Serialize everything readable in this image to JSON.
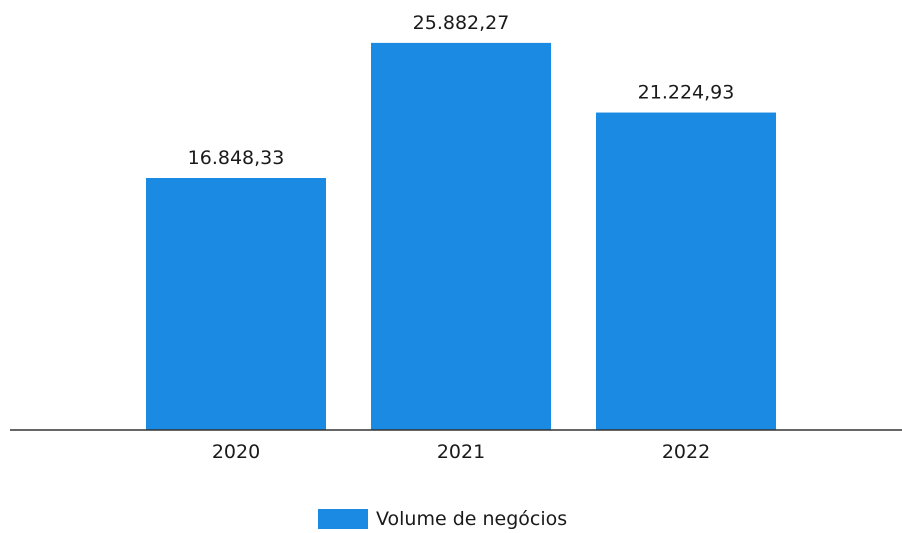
{
  "chart_data": {
    "type": "bar",
    "categories": [
      "2020",
      "2021",
      "2022"
    ],
    "series": [
      {
        "name": "Volume de negócios",
        "values": [
          16848.33,
          25882.27,
          21224.93
        ]
      }
    ],
    "data_labels": [
      "16.848,33",
      "25.882,27",
      "21.224,93"
    ],
    "ylim": [
      0,
      28750
    ],
    "grid": false,
    "legend_position": "bottom",
    "bar_color": "#1a8ae2"
  }
}
